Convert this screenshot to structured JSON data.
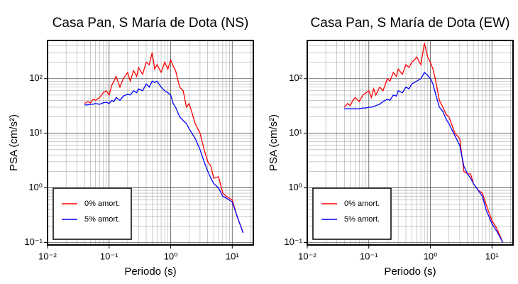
{
  "chart_data": [
    {
      "type": "line",
      "title": "Casa Pan, S María de Dota (NS)",
      "xlabel": "Periodo (s)",
      "ylabel": "PSA (cm/s²)",
      "xscale": "log",
      "yscale": "log",
      "grid": true,
      "minor_grid": true,
      "legend": "lower left",
      "xlim": [
        0.01,
        22
      ],
      "ylim": [
        0.09,
        500
      ],
      "xticks": [
        {
          "value": 0.01,
          "label": "10⁻²"
        },
        {
          "value": 0.1,
          "label": "10⁻¹"
        },
        {
          "value": 1,
          "label": "10⁰"
        },
        {
          "value": 10,
          "label": "10¹"
        }
      ],
      "yticks": [
        {
          "value": 0.1,
          "label": "10⁻¹"
        },
        {
          "value": 1,
          "label": "10⁰"
        },
        {
          "value": 10,
          "label": "10¹"
        },
        {
          "value": 100,
          "label": "10²"
        }
      ],
      "x": [
        0.04,
        0.045,
        0.05,
        0.055,
        0.06,
        0.07,
        0.08,
        0.09,
        0.1,
        0.11,
        0.12,
        0.13,
        0.15,
        0.17,
        0.2,
        0.22,
        0.25,
        0.28,
        0.3,
        0.35,
        0.4,
        0.45,
        0.5,
        0.55,
        0.6,
        0.7,
        0.8,
        0.9,
        1.0,
        1.1,
        1.2,
        1.4,
        1.6,
        1.8,
        2.0,
        2.5,
        3.0,
        3.5,
        4.0,
        4.5,
        5.0,
        6.0,
        7.0,
        8.0,
        10,
        12,
        15
      ],
      "series": [
        {
          "name": "0% amort.",
          "color": "#ff0000",
          "values": [
            35,
            38,
            36,
            42,
            40,
            45,
            55,
            60,
            50,
            75,
            90,
            110,
            70,
            100,
            130,
            90,
            140,
            110,
            160,
            120,
            200,
            180,
            300,
            150,
            180,
            130,
            200,
            150,
            220,
            170,
            140,
            70,
            60,
            30,
            35,
            15,
            10,
            5,
            3,
            2.5,
            1.5,
            1.6,
            0.8,
            0.7,
            0.6,
            0.3,
            0.15
          ]
        },
        {
          "name": "5% amort.",
          "color": "#0000ff",
          "values": [
            33,
            33,
            34,
            34,
            35,
            34,
            36,
            37,
            35,
            40,
            38,
            45,
            40,
            48,
            52,
            50,
            60,
            55,
            65,
            60,
            80,
            70,
            90,
            85,
            90,
            70,
            60,
            55,
            50,
            35,
            30,
            20,
            17,
            15,
            12,
            8,
            5,
            3,
            2,
            1.5,
            1.2,
            1,
            0.7,
            0.65,
            0.55,
            0.3,
            0.15
          ]
        }
      ]
    },
    {
      "type": "line",
      "title": "Casa Pan, S María de Dota (EW)",
      "xlabel": "Periodo (s)",
      "ylabel": "PSA (cm/s²)",
      "xscale": "log",
      "yscale": "log",
      "grid": true,
      "minor_grid": true,
      "legend": "lower left",
      "xlim": [
        0.01,
        22
      ],
      "ylim": [
        0.09,
        500
      ],
      "xticks": [
        {
          "value": 0.01,
          "label": "10⁻²"
        },
        {
          "value": 0.1,
          "label": "10⁻¹"
        },
        {
          "value": 1,
          "label": "10⁰"
        },
        {
          "value": 10,
          "label": "10¹"
        }
      ],
      "yticks": [
        {
          "value": 0.1,
          "label": "10⁻¹"
        },
        {
          "value": 1,
          "label": "10⁰"
        },
        {
          "value": 10,
          "label": "10¹"
        },
        {
          "value": 100,
          "label": "10²"
        }
      ],
      "x": [
        0.04,
        0.045,
        0.05,
        0.055,
        0.06,
        0.07,
        0.08,
        0.09,
        0.1,
        0.11,
        0.12,
        0.13,
        0.15,
        0.17,
        0.2,
        0.22,
        0.25,
        0.28,
        0.3,
        0.35,
        0.4,
        0.45,
        0.5,
        0.55,
        0.6,
        0.7,
        0.8,
        0.9,
        1.0,
        1.1,
        1.2,
        1.4,
        1.6,
        1.8,
        2.0,
        2.5,
        3.0,
        3.5,
        4.0,
        4.5,
        5.0,
        6.0,
        7.0,
        8.0,
        10,
        12,
        15
      ],
      "series": [
        {
          "name": "0% amort.",
          "color": "#ff0000",
          "values": [
            30,
            35,
            32,
            40,
            45,
            38,
            50,
            55,
            60,
            45,
            65,
            50,
            70,
            60,
            100,
            90,
            130,
            110,
            150,
            120,
            180,
            160,
            200,
            220,
            250,
            180,
            450,
            250,
            200,
            150,
            100,
            40,
            30,
            22,
            20,
            10,
            8,
            2,
            1.8,
            1.8,
            1.2,
            0.9,
            0.8,
            0.5,
            0.25,
            0.18,
            0.1
          ]
        },
        {
          "name": "5% amort.",
          "color": "#0000ff",
          "values": [
            28,
            28,
            28,
            28,
            28,
            28,
            29,
            29,
            30,
            30,
            31,
            32,
            34,
            38,
            42,
            40,
            50,
            48,
            60,
            55,
            70,
            65,
            80,
            85,
            90,
            100,
            130,
            115,
            100,
            80,
            55,
            30,
            25,
            18,
            15,
            9,
            6,
            2.5,
            1.8,
            1.5,
            1.2,
            0.9,
            0.7,
            0.4,
            0.22,
            0.16,
            0.1
          ]
        }
      ]
    }
  ]
}
